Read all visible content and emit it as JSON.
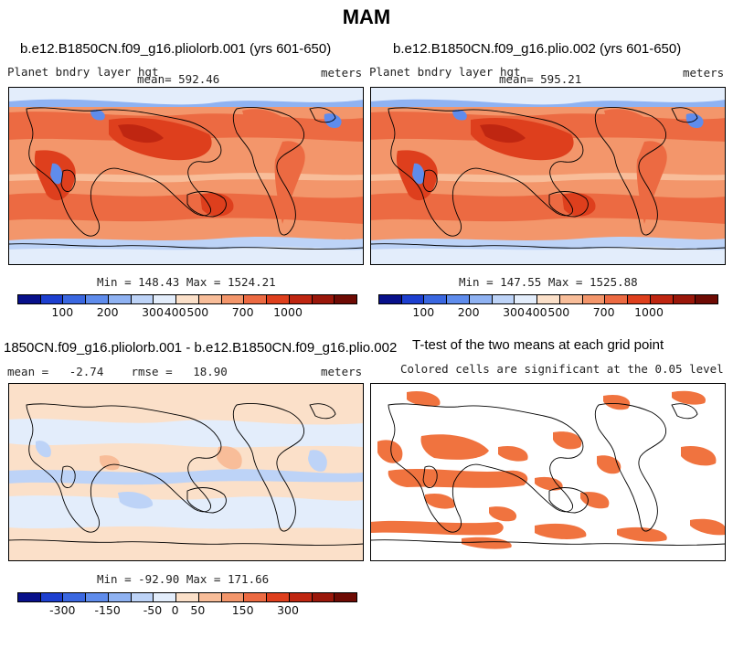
{
  "figure": {
    "title": "MAM",
    "panels": [
      {
        "title": "b.e12.B1850CN.f09_g16.pliolorb.001 (yrs 601-650)",
        "left_label": "Planet bndry layer hgt",
        "center_label": "mean= 592.46",
        "right_label": "meters",
        "minmax": "Min = 148.43 Max = 1524.21"
      },
      {
        "title": "b.e12.B1850CN.f09_g16.plio.002 (yrs 601-650)",
        "left_label": "Planet bndry layer hgt",
        "center_label": "mean= 595.21",
        "right_label": "meters",
        "minmax": "Min = 147.55 Max = 1525.88"
      },
      {
        "title": "1850CN.f09_g16.pliolorb.001 - b.e12.B1850CN.f09_g16.plio.002",
        "left_label": "mean =   -2.74    rmse =   18.90",
        "right_label": "meters",
        "minmax": "Min = -92.90 Max = 171.66"
      },
      {
        "title": "T-test of the two means at each grid point",
        "subtitle": "Colored cells are significant at the 0.05 level"
      }
    ],
    "colorbars": {
      "absolute": {
        "ticks": [
          "100",
          "200",
          "300",
          "400",
          "500",
          "700",
          "1000"
        ],
        "colors": [
          "#08108a",
          "#1d3fcf",
          "#3a67e0",
          "#5f8cec",
          "#8fb2f2",
          "#bdd3f7",
          "#e3edfb",
          "#fbe0c9",
          "#f8bd99",
          "#f3966b",
          "#ec6a42",
          "#de3f1d",
          "#bf2611",
          "#9a170a",
          "#6e0b04"
        ]
      },
      "difference": {
        "ticks": [
          "-300",
          "-150",
          "-50",
          "0",
          "50",
          "150",
          "300"
        ],
        "colors": [
          "#08108a",
          "#1d3fcf",
          "#3a67e0",
          "#5f8cec",
          "#8fb2f2",
          "#bdd3f7",
          "#e3edfb",
          "#fbe0c9",
          "#f8bd99",
          "#f3966b",
          "#ec6a42",
          "#de3f1d",
          "#bf2611",
          "#9a170a",
          "#6e0b04"
        ]
      }
    },
    "significance_color": "#f0733f"
  }
}
